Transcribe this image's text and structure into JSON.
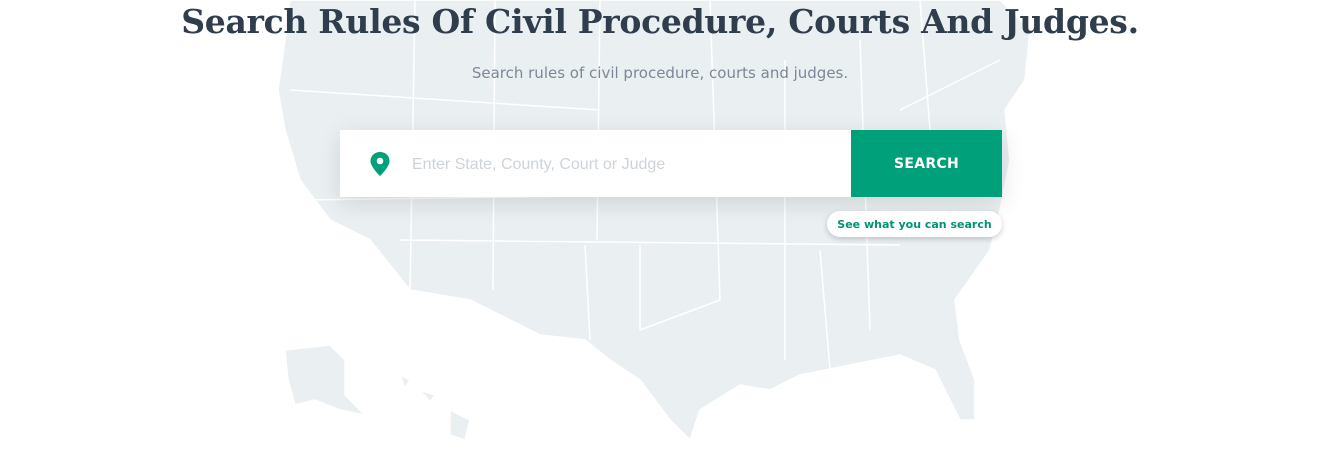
{
  "hero": {
    "title": "Search Rules Of Civil Procedure, Courts And Judges.",
    "subtitle": "Search rules of civil procedure, courts and judges."
  },
  "search": {
    "placeholder": "Enter State, County, Court or Judge",
    "value": "",
    "button_label": "SEARCH",
    "icon": "map-pin-icon",
    "help_link": "See what you can search"
  },
  "colors": {
    "accent": "#00a07b",
    "title": "#2f3d4d",
    "map": "#eaf0f2"
  }
}
